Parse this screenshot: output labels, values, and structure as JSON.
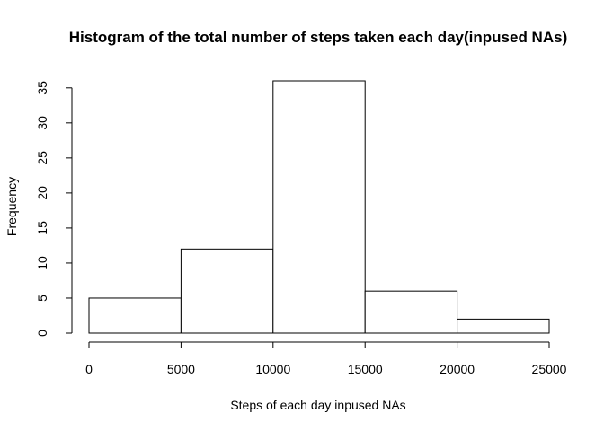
{
  "chart_data": {
    "type": "bar",
    "title": "Histogram of the total number of steps taken each day(inpused NAs)",
    "xlabel": "Steps of each day inpused NAs",
    "ylabel": "Frequency",
    "bins": [
      {
        "from": 0,
        "to": 5000,
        "value": 5
      },
      {
        "from": 5000,
        "to": 10000,
        "value": 12
      },
      {
        "from": 10000,
        "to": 15000,
        "value": 36
      },
      {
        "from": 15000,
        "to": 20000,
        "value": 6
      },
      {
        "from": 20000,
        "to": 25000,
        "value": 2
      }
    ],
    "xticks": [
      0,
      5000,
      10000,
      15000,
      20000,
      25000
    ],
    "yticks": [
      0,
      5,
      10,
      15,
      20,
      25,
      30,
      35
    ],
    "xlim": [
      0,
      25000
    ],
    "ylim": [
      0,
      36
    ],
    "grid": false,
    "bar_fill": "#ffffff",
    "bar_stroke": "#000000"
  }
}
